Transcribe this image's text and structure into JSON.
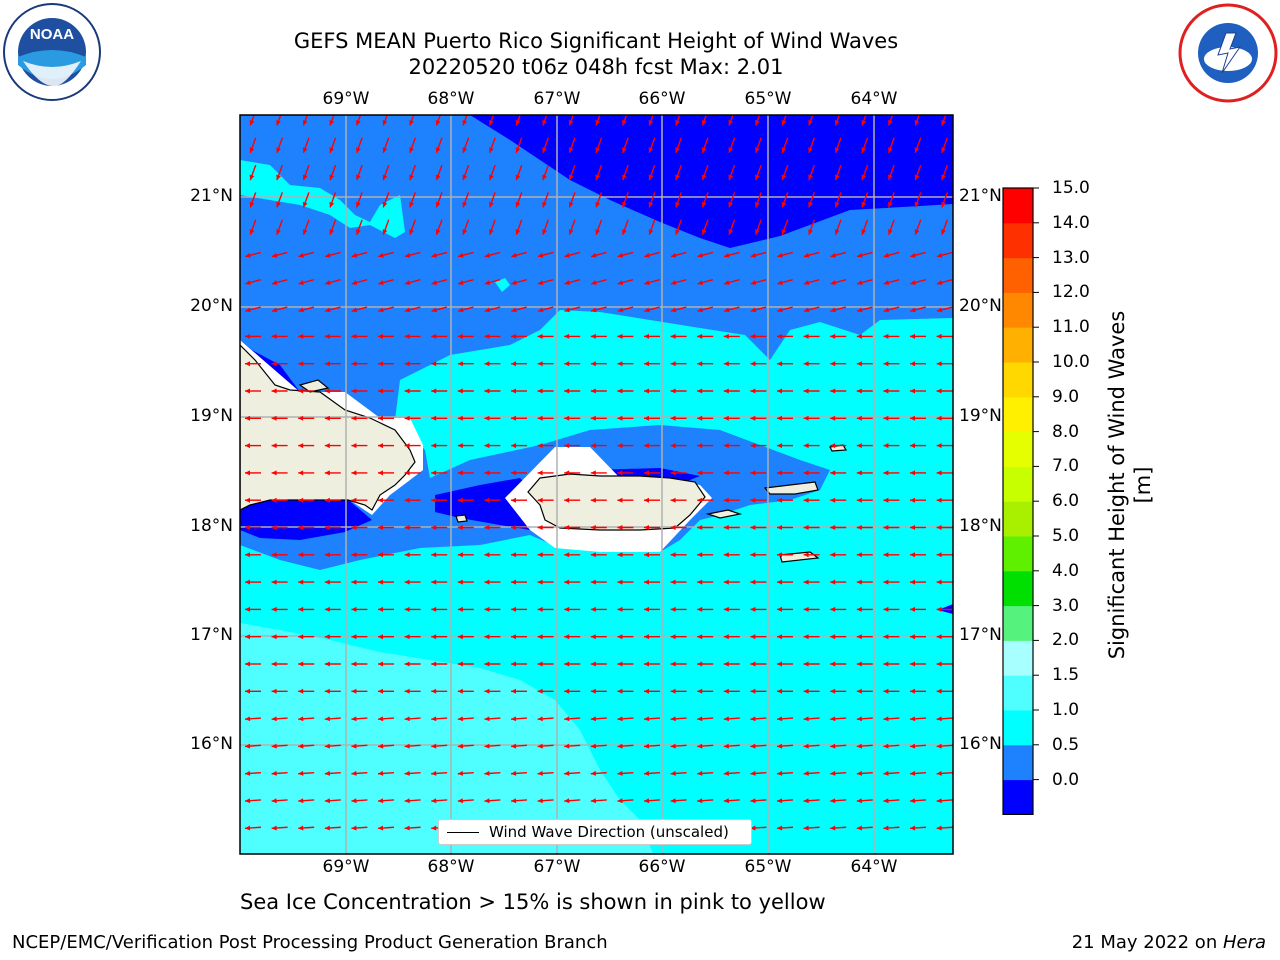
{
  "title_line1": "GEFS MEAN Puerto Rico Significant Height of Wind Waves",
  "title_line2": "20220520 t06z 048h fcst   Max: 2.01",
  "lon_ticks": [
    "69°W",
    "68°W",
    "67°W",
    "66°W",
    "65°W",
    "64°W"
  ],
  "lat_ticks": [
    "21°N",
    "20°N",
    "19°N",
    "18°N",
    "17°N",
    "16°N"
  ],
  "legend_label": "Wind Wave Direction (unscaled)",
  "colorbar": {
    "title": "Significant Height of Wind Waves [m]",
    "labels": [
      "15.0",
      "14.0",
      "13.0",
      "12.0",
      "11.0",
      "10.0",
      "9.0",
      "8.0",
      "7.0",
      "6.0",
      "5.0",
      "4.0",
      "3.0",
      "2.0",
      "1.5",
      "1.0",
      "0.5",
      "0.0"
    ],
    "colors": [
      "#0000ff",
      "#1e82ff",
      "#00ffff",
      "#4fffff",
      "#a8ffff",
      "#55f37e",
      "#00e000",
      "#5ff000",
      "#a8f000",
      "#c8ff00",
      "#e6ff00",
      "#fff000",
      "#ffd800",
      "#ffb000",
      "#ff8800",
      "#ff6000",
      "#ff3000",
      "#ff0000"
    ]
  },
  "subtitle": "Sea Ice Concentration > 15% is shown in pink to yellow",
  "footer_left": "NCEP/EMC/Verification Post Processing Product Generation Branch",
  "footer_date": "21 May 2022 on ",
  "footer_machine": "Hera",
  "map_colors": {
    "band_0_0.5": "#0000ff",
    "band_0.5_1.0": "#1e82ff",
    "band_1.0_1.5": "#00ffff",
    "band_1.5_2.0": "#4fffff",
    "land": "#efefdf",
    "arrow": "#ff0000"
  }
}
